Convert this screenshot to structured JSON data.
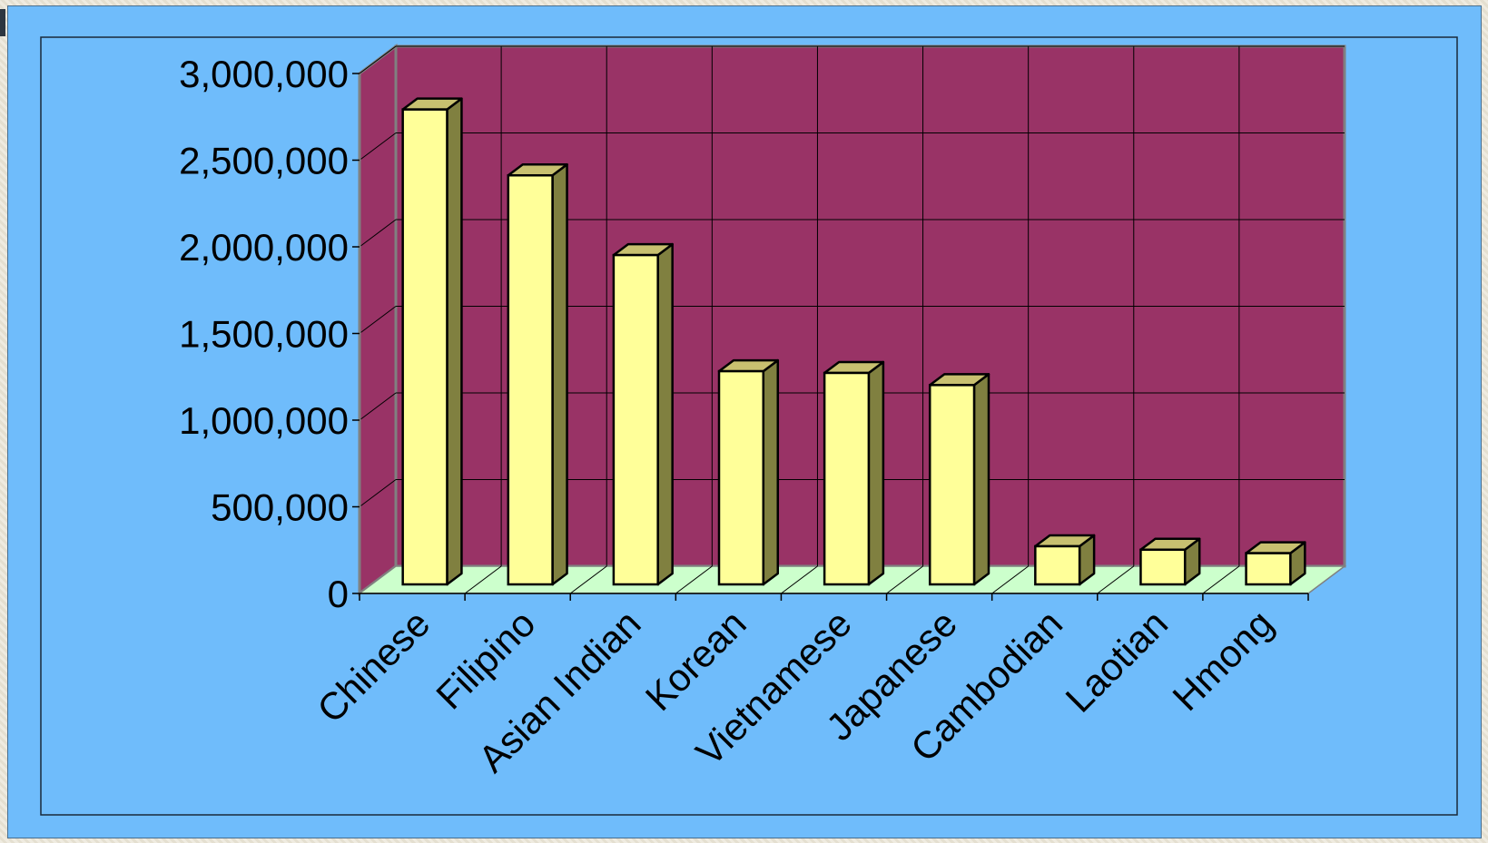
{
  "colors": {
    "slide_background": "#6fbcfb",
    "back_wall": "#993366",
    "floor": "#ccffcc",
    "bar_front": "#ffff99",
    "bar_side": "#808040",
    "bar_top": "#c8c070"
  },
  "chart_data": {
    "type": "bar",
    "title": "",
    "xlabel": "",
    "ylabel": "",
    "categories": [
      "Chinese",
      "Filipino",
      "Asian Indian",
      "Korean",
      "Vietnamese",
      "Japanese",
      "Cambodian",
      "Laotian",
      "Hmong"
    ],
    "values": [
      2740000,
      2360000,
      1900000,
      1230000,
      1220000,
      1150000,
      220000,
      200000,
      180000
    ],
    "ylim": [
      0,
      3000000
    ],
    "yticks": [
      0,
      500000,
      1000000,
      1500000,
      2000000,
      2500000,
      3000000
    ],
    "ytick_labels": [
      "0",
      "500,000",
      "1,000,000",
      "1,500,000",
      "2,000,000",
      "2,500,000",
      "3,000,000"
    ],
    "grid": true,
    "legend": "none",
    "style": "3d-column"
  }
}
